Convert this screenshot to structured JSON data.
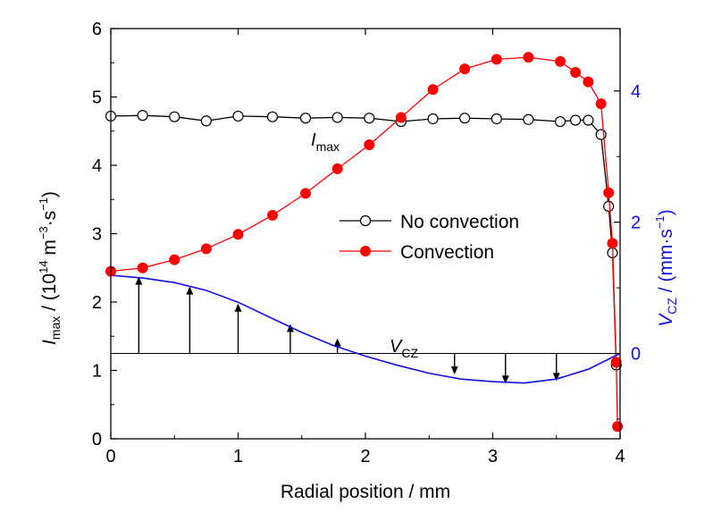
{
  "chart_data": {
    "type": "line",
    "xlabel": "Radial position / mm",
    "ylabel": {
      "main": "I",
      "sub": "max",
      "rest": " / (10",
      "exp1": "14",
      "mid": " m",
      "exp2": "−3",
      "mid2": "·s",
      "exp3": "−1",
      "end": ")"
    },
    "y2label": {
      "main": "V",
      "sub": "CZ",
      "rest": " / (mm·s",
      "exp": "−1",
      "end": ")"
    },
    "xlim": [
      0,
      4
    ],
    "ylim": [
      0,
      6
    ],
    "y2lim": [
      -1.3,
      4.95
    ],
    "x_ticks": [
      "0",
      "1",
      "2",
      "3",
      "4"
    ],
    "y_ticks": [
      "0",
      "1",
      "2",
      "3",
      "4",
      "5",
      "6"
    ],
    "y2_ticks": [
      "0",
      "2",
      "4"
    ],
    "colors": {
      "no_convection": "#000000",
      "convection": "#ff0000",
      "vcz": "#1010e0",
      "right_axis": "#1010e0"
    },
    "series": [
      {
        "name": "No convection",
        "marker": "open-circle",
        "x": [
          0,
          0.25,
          0.5,
          0.75,
          1.0,
          1.27,
          1.53,
          1.78,
          2.03,
          2.28,
          2.53,
          2.78,
          3.03,
          3.28,
          3.53,
          3.65,
          3.75,
          3.85,
          3.91,
          3.94,
          3.97
        ],
        "y": [
          4.72,
          4.73,
          4.71,
          4.65,
          4.72,
          4.71,
          4.69,
          4.7,
          4.69,
          4.64,
          4.68,
          4.69,
          4.68,
          4.67,
          4.64,
          4.66,
          4.66,
          4.45,
          3.4,
          2.72,
          1.08
        ]
      },
      {
        "name": "Convection",
        "marker": "filled-circle",
        "x": [
          0,
          0.25,
          0.5,
          0.75,
          1.0,
          1.27,
          1.53,
          1.78,
          2.03,
          2.28,
          2.53,
          2.78,
          3.03,
          3.28,
          3.53,
          3.65,
          3.75,
          3.85,
          3.91,
          3.94,
          3.97,
          3.98
        ],
        "y": [
          2.45,
          2.5,
          2.62,
          2.78,
          2.99,
          3.27,
          3.59,
          3.95,
          4.3,
          4.7,
          5.11,
          5.41,
          5.55,
          5.58,
          5.52,
          5.36,
          5.22,
          4.9,
          3.6,
          2.86,
          1.12,
          0.18
        ]
      }
    ],
    "vcz_curve": {
      "label": "V",
      "label_sub": "CZ",
      "x": [
        0,
        0.25,
        0.5,
        0.75,
        1.0,
        1.25,
        1.5,
        1.75,
        2.0,
        2.25,
        2.5,
        2.75,
        3.0,
        3.25,
        3.5,
        3.75,
        4.0
      ],
      "y": [
        1.19,
        1.15,
        1.08,
        0.96,
        0.78,
        0.55,
        0.32,
        0.12,
        -0.04,
        -0.18,
        -0.3,
        -0.39,
        -0.43,
        -0.45,
        -0.39,
        -0.24,
        0.0
      ]
    },
    "vcz_arrows": {
      "x": [
        0.22,
        0.62,
        1.0,
        1.41,
        1.78,
        2.7,
        3.1,
        3.5
      ],
      "y": [
        1.17,
        1.02,
        0.76,
        0.45,
        0.23,
        -0.32,
        -0.46,
        -0.42
      ]
    },
    "annotations": [
      {
        "text": "I",
        "sub": "max",
        "x": 1.62,
        "y": 4.25
      },
      {
        "text": "V",
        "sub": "CZ",
        "x": 2.1,
        "y": 1.25
      }
    ],
    "legend_position": "center-right"
  }
}
